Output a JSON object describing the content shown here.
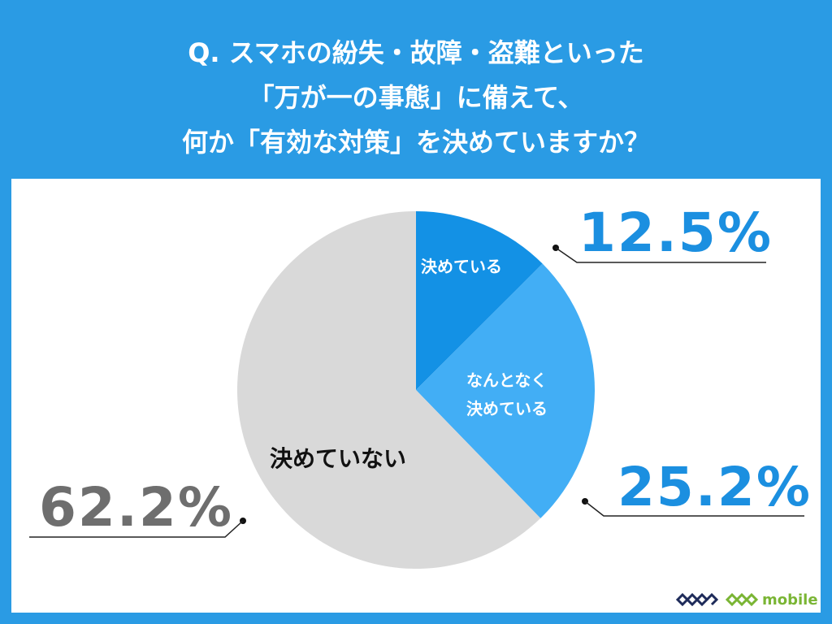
{
  "title": {
    "lines": [
      "Q. スマホの紛失・故障・盗難といった",
      "「万が一の事態」に備えて、",
      "何か「有効な対策」を決めていますか？"
    ]
  },
  "chart_data": {
    "type": "pie",
    "title": "Q. スマホの紛失・故障・盗難といった「万が一の事態」に備えて、何か「有効な対策」を決めていますか？",
    "categories": [
      "決めている",
      "なんとなく決めている",
      "決めていない"
    ],
    "values": [
      12.5,
      25.2,
      62.2
    ],
    "unit": "%",
    "colors": [
      "#1391e5",
      "#42aef5",
      "#d9d9d9"
    ],
    "start_angle": "12 o'clock, clockwise"
  },
  "labels": {
    "slice1_inner": "決めている",
    "slice2_inner_line1": "なんとなく",
    "slice2_inner_line2": "決めている",
    "slice3_inner": "決めていない",
    "pct1": "12.5%",
    "pct2": "25.2%",
    "pct3": "62.2%"
  },
  "colors": {
    "background": "#2a9be4",
    "panel": "#ffffff",
    "pct_blue": "#1b8fe0",
    "pct_gray": "#6e6e6e"
  },
  "logos": {
    "geo": "GEO",
    "geo_mobile_text": "mobile"
  }
}
